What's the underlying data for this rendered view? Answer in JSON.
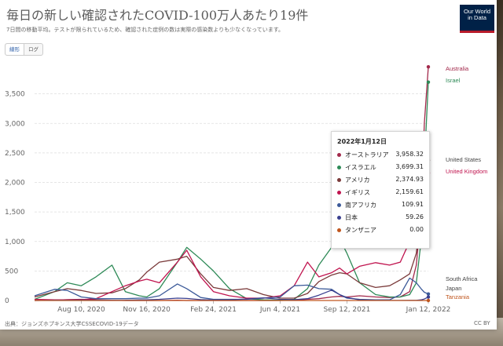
{
  "title": "毎日の新しい確認されたCOVID-100万人あたり19件",
  "subtitle": "7日間の移動平均。テストが限られているため、確認された症例の数は実際の感染数よりも少なくなっています。",
  "logo": {
    "line1": "Our World",
    "line2": "in Data"
  },
  "toggle": {
    "linear": "線形",
    "log": "ログ"
  },
  "source": "出典：ジョンズホプキンス大学CSSECOVID-19データ",
  "license": "CC BY",
  "tooltip": {
    "date": "2022年1月12日",
    "rows": [
      {
        "name": "オーストラリア",
        "value": "3,958.32",
        "color": "#a2294b"
      },
      {
        "name": "イスラエル",
        "value": "3,699.31",
        "color": "#2e8a57"
      },
      {
        "name": "アメリカ",
        "value": "2,374.93",
        "color": "#7a3a3a"
      },
      {
        "name": "イギリス",
        "value": "2,159.61",
        "color": "#c0134e"
      },
      {
        "name": "南アフリカ",
        "value": "109.91",
        "color": "#3c5a99"
      },
      {
        "name": "日本",
        "value": "59.26",
        "color": "#3a3f8f"
      },
      {
        "name": "タンザニア",
        "value": "0.00",
        "color": "#c0561e"
      }
    ]
  },
  "chart_data": {
    "type": "line",
    "title": "毎日の新しい確認されたCOVID-100万人あたり19件",
    "ylim": [
      0,
      4000
    ],
    "yticks": [
      0,
      500,
      1000,
      1500,
      2000,
      2500,
      3000,
      3500
    ],
    "yticklabels": [
      "0",
      "500",
      "1,000",
      "1,500",
      "2,000",
      "2,500",
      "3,000",
      "3,500"
    ],
    "xticklabels": [
      "Aug 10, 2020",
      "Nov 16, 2020",
      "Feb 24, 2021",
      "Jun 4, 2021",
      "Sep 12, 2021",
      "Jan 12, 2022"
    ],
    "x_dates": [
      "2020-06-01",
      "2020-07-01",
      "2020-07-20",
      "2020-08-10",
      "2020-09-01",
      "2020-09-25",
      "2020-10-15",
      "2020-11-05",
      "2020-11-16",
      "2020-12-05",
      "2021-01-01",
      "2021-01-15",
      "2021-02-05",
      "2021-02-24",
      "2021-03-20",
      "2021-04-15",
      "2021-05-10",
      "2021-06-04",
      "2021-06-25",
      "2021-07-15",
      "2021-08-01",
      "2021-08-20",
      "2021-09-01",
      "2021-09-12",
      "2021-10-01",
      "2021-10-25",
      "2021-11-15",
      "2021-12-01",
      "2021-12-15",
      "2021-12-25",
      "2022-01-01",
      "2022-01-06",
      "2022-01-12"
    ],
    "series": [
      {
        "name": "Australia",
        "color": "#a2294b",
        "values": [
          0,
          5,
          15,
          20,
          10,
          5,
          0,
          0,
          0,
          0,
          5,
          0,
          0,
          0,
          0,
          0,
          0,
          0,
          5,
          20,
          30,
          60,
          70,
          60,
          80,
          60,
          50,
          60,
          150,
          600,
          1500,
          3000,
          3958
        ]
      },
      {
        "name": "Israel",
        "color": "#2e8a57",
        "values": [
          20,
          150,
          300,
          250,
          400,
          600,
          150,
          80,
          60,
          200,
          650,
          900,
          700,
          500,
          200,
          30,
          10,
          5,
          20,
          200,
          600,
          900,
          1050,
          800,
          300,
          100,
          60,
          60,
          100,
          300,
          1000,
          2300,
          3699
        ]
      },
      {
        "name": "United States",
        "color": "#7a3a3a",
        "values": [
          60,
          150,
          200,
          170,
          120,
          130,
          200,
          350,
          480,
          650,
          700,
          750,
          450,
          220,
          170,
          200,
          100,
          40,
          40,
          120,
          320,
          430,
          470,
          450,
          300,
          220,
          250,
          350,
          450,
          800,
          1500,
          1900,
          2375
        ]
      },
      {
        "name": "United Kingdom",
        "color": "#c0134e",
        "values": [
          20,
          10,
          10,
          15,
          30,
          150,
          250,
          330,
          360,
          300,
          650,
          850,
          400,
          150,
          80,
          40,
          40,
          80,
          250,
          650,
          400,
          470,
          550,
          450,
          580,
          640,
          600,
          650,
          1000,
          1300,
          2200,
          2400,
          2160
        ]
      },
      {
        "name": "South Africa",
        "color": "#3c5a99",
        "values": [
          80,
          190,
          170,
          60,
          30,
          30,
          30,
          40,
          40,
          80,
          280,
          200,
          50,
          20,
          20,
          20,
          40,
          60,
          250,
          260,
          200,
          190,
          100,
          40,
          20,
          10,
          10,
          100,
          380,
          300,
          200,
          140,
          110
        ]
      },
      {
        "name": "Japan",
        "color": "#3a3f8f",
        "values": [
          0,
          5,
          5,
          8,
          5,
          3,
          4,
          10,
          12,
          20,
          40,
          35,
          15,
          8,
          10,
          25,
          45,
          20,
          15,
          30,
          90,
          175,
          100,
          50,
          10,
          2,
          1,
          1,
          2,
          3,
          10,
          25,
          59
        ]
      },
      {
        "name": "Tanzania",
        "color": "#c0561e",
        "values": [
          0,
          0,
          0,
          0,
          0,
          0,
          0,
          0,
          0,
          0,
          0,
          0,
          0,
          0,
          0,
          0,
          0,
          0,
          0,
          0,
          0,
          0,
          0,
          0,
          0,
          0,
          0,
          0,
          0,
          0,
          0,
          0,
          0
        ]
      }
    ]
  }
}
